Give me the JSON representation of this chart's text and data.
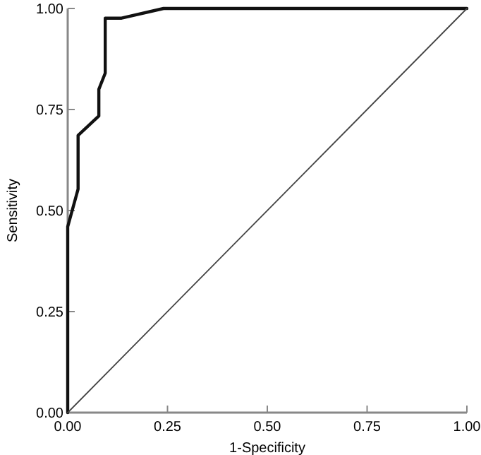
{
  "chart_data": {
    "type": "line",
    "xlabel": "1-Specificity",
    "ylabel": "Sensitivity",
    "xlim": [
      0,
      1
    ],
    "ylim": [
      0,
      1
    ],
    "xticks": [
      {
        "value": 0,
        "label": "0.00"
      },
      {
        "value": 0.25,
        "label": "0.25"
      },
      {
        "value": 0.5,
        "label": "0.50"
      },
      {
        "value": 0.75,
        "label": "0.75"
      },
      {
        "value": 1,
        "label": "1.00"
      }
    ],
    "yticks": [
      {
        "value": 0,
        "label": "0.00"
      },
      {
        "value": 0.25,
        "label": "0.25"
      },
      {
        "value": 0.5,
        "label": "0.50"
      },
      {
        "value": 0.75,
        "label": "0.75"
      },
      {
        "value": 1,
        "label": "1.00"
      }
    ],
    "grid": false,
    "marker": "none",
    "line_style": "solid",
    "series": [
      {
        "color": "#111111",
        "x": [
          0,
          0,
          0.026,
          0.026,
          0.078,
          0.078,
          0.094,
          0.094,
          0.135,
          0.24,
          1
        ],
        "values": [
          0,
          0.46,
          0.553,
          0.686,
          0.734,
          0.8,
          0.84,
          0.976,
          0.976,
          1,
          1
        ]
      },
      {
        "color": "#444444",
        "x": [
          0,
          1
        ],
        "values": [
          0,
          1
        ]
      }
    ]
  }
}
